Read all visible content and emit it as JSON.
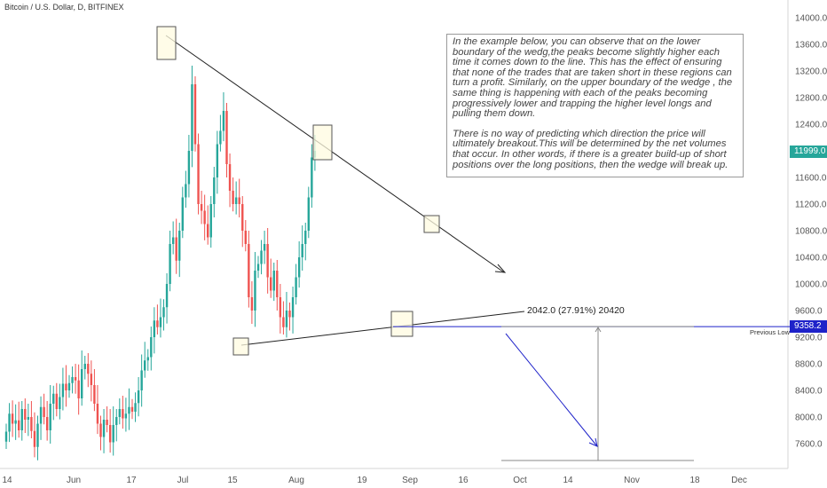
{
  "header": {
    "title": "Bitcoin / U.S. Dollar, D, BITFINEX"
  },
  "annotation": {
    "paragraphs": [
      "In the example below, you can observe that on the lower boundary of the wedg,the peaks become slightly higher each time it comes down to the line. This has the effect of ensuring that none of the trades that are taken short in these regions can turn a profit. Similarly, on the upper boundary of the wedge , the same thing is happening with each of the peaks becoming progressively lower and trapping the higher level longs and pulling them down.",
      "There is no way of predicting which direction the price will ultimately breakout.This will be determined by the net volumes that occur. In other words, if there is a greater build-up of short positions over the long positions, then the wedge will break up."
    ]
  },
  "measure_label": "2042.0 (27.91%) 20420",
  "previous_low_label": "Previous Low",
  "price_tags": {
    "current": "11999.0",
    "previous_low": "9358.2"
  },
  "colors": {
    "up": "#26a69a",
    "down": "#ef5350",
    "accent": "#1e22c9"
  },
  "chart_data": {
    "type": "candlestick",
    "title": "Bitcoin / U.S. Dollar, D, BITFINEX",
    "y_axis": {
      "ticks": [
        "14000.0",
        "13600.0",
        "13200.0",
        "12800.0",
        "12400.0",
        "12000.0",
        "11600.0",
        "11200.0",
        "10800.0",
        "10400.0",
        "10000.0",
        "9600.0",
        "9200.0",
        "8800.0",
        "8400.0",
        "8000.0",
        "7600.0"
      ],
      "range": [
        7200,
        14250
      ]
    },
    "x_axis": {
      "ticks": [
        "14",
        "Jun",
        "17",
        "Jul",
        "15",
        "Aug",
        "19",
        "Sep",
        "16",
        "Oct",
        "14",
        "Nov",
        "18",
        "Dec"
      ]
    },
    "grid": false,
    "candles_close": [
      7780,
      8050,
      7900,
      7950,
      7800,
      8120,
      7960,
      8000,
      7790,
      7550,
      7900,
      8150,
      8000,
      7800,
      8200,
      8350,
      8120,
      8300,
      8500,
      8400,
      8510,
      8600,
      8550,
      8280,
      8720,
      8800,
      8650,
      8480,
      8200,
      7900,
      7700,
      7960,
      7880,
      7620,
      7880,
      8000,
      8120,
      7980,
      8050,
      8150,
      8080,
      8210,
      8400,
      8700,
      8850,
      8900,
      9200,
      9450,
      9350,
      9500,
      9650,
      10000,
      10600,
      10700,
      10350,
      10800,
      11300,
      11500,
      12000,
      13000,
      12100,
      11200,
      11100,
      10900,
      10700,
      11200,
      11600,
      12100,
      12300,
      12600,
      11800,
      11400,
      11200,
      11300,
      11200,
      10800,
      10600,
      9800,
      9600,
      10200,
      10300,
      10500,
      10600,
      10100,
      9900,
      10200,
      9800,
      9500,
      9350,
      9600,
      9500,
      9800,
      10100,
      10400,
      10600,
      10800,
      11300,
      11900,
      12000
    ],
    "series": [
      {
        "name": "Previous Low",
        "values": [
          9358.2
        ]
      }
    ],
    "annotations": [
      {
        "text": "2042.0 (27.91%) 20420"
      },
      {
        "text": "Previous Low",
        "value": 9358.2
      },
      {
        "text": "11999.0",
        "value": 11999.0
      }
    ]
  }
}
